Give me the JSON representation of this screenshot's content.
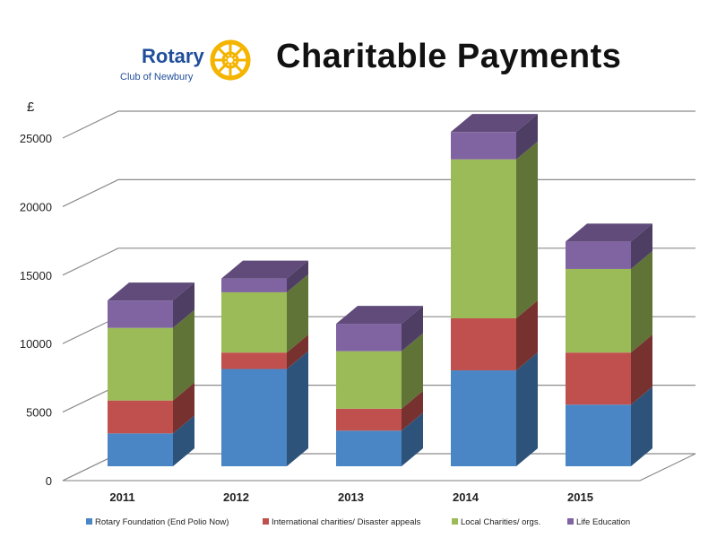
{
  "logo": {
    "name": "Rotary",
    "subtitle": "Club of Newbury"
  },
  "chart_data": {
    "type": "bar",
    "stacked": true,
    "three_d": true,
    "title": "Charitable Payments",
    "ylabel": "£",
    "xlabel": "",
    "ylim": [
      0,
      25000
    ],
    "yticks": [
      0,
      5000,
      10000,
      15000,
      20000,
      25000
    ],
    "grid": true,
    "legend_position": "bottom",
    "categories": [
      "2011",
      "2012",
      "2013",
      "2014",
      "2015"
    ],
    "series": [
      {
        "name": "Rotary Foundation (End Polio Now)",
        "color": "#4a86c5",
        "values": [
          2400,
          7100,
          2600,
          7000,
          4500
        ]
      },
      {
        "name": "International charities/ Disaster appeals",
        "color": "#c0504d",
        "values": [
          2400,
          1200,
          1600,
          3800,
          3800
        ]
      },
      {
        "name": "Local Charities/ orgs.",
        "color": "#9bbb59",
        "values": [
          5300,
          4400,
          4200,
          11600,
          6100
        ]
      },
      {
        "name": "Life Education",
        "color": "#8064a2",
        "values": [
          2000,
          1000,
          2000,
          2000,
          2000
        ]
      }
    ]
  }
}
